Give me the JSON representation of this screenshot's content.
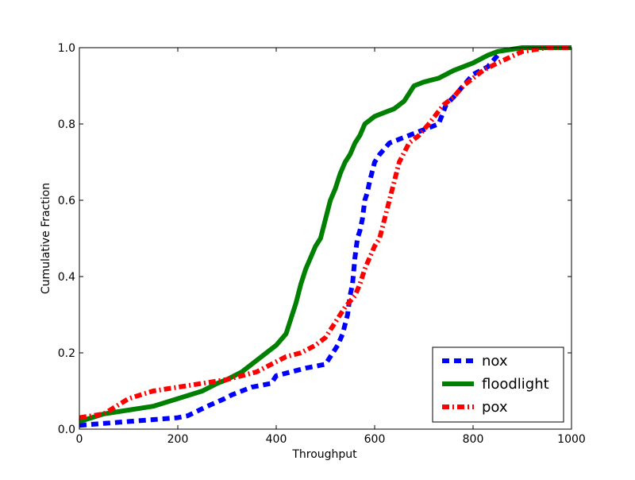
{
  "chart_data": {
    "type": "line",
    "title": "",
    "xlabel": "Throughput",
    "ylabel": "Cumulative Fraction",
    "xlim": [
      0,
      1000
    ],
    "ylim": [
      0,
      1.0
    ],
    "xticks": [
      0,
      200,
      400,
      600,
      800,
      1000
    ],
    "xtick_labels": [
      "0",
      "200",
      "400",
      "600",
      "800",
      "1000"
    ],
    "yticks": [
      0.0,
      0.2,
      0.4,
      0.6,
      0.8,
      1.0
    ],
    "ytick_labels": [
      "0.0",
      "0.2",
      "0.4",
      "0.6",
      "0.8",
      "1.0"
    ],
    "grid": false,
    "legend_position": "bottom-right",
    "series": [
      {
        "name": "nox",
        "color": "#0000ff",
        "style": "dashed",
        "x": [
          0,
          50,
          100,
          150,
          200,
          220,
          260,
          295,
          310,
          350,
          390,
          400,
          430,
          460,
          500,
          505,
          515,
          525,
          535,
          545,
          550,
          555,
          560,
          565,
          570,
          575,
          580,
          585,
          590,
          600,
          610,
          630,
          650,
          670,
          690,
          710,
          730,
          745,
          760,
          780,
          800,
          830,
          850
        ],
        "y": [
          0.01,
          0.015,
          0.02,
          0.025,
          0.03,
          0.035,
          0.06,
          0.08,
          0.09,
          0.11,
          0.12,
          0.14,
          0.15,
          0.16,
          0.17,
          0.18,
          0.2,
          0.22,
          0.25,
          0.3,
          0.35,
          0.38,
          0.45,
          0.5,
          0.52,
          0.55,
          0.6,
          0.62,
          0.65,
          0.7,
          0.72,
          0.75,
          0.76,
          0.77,
          0.78,
          0.79,
          0.8,
          0.85,
          0.87,
          0.9,
          0.93,
          0.95,
          0.98
        ]
      },
      {
        "name": "floodlight",
        "color": "#008000",
        "style": "solid",
        "x": [
          0,
          50,
          100,
          150,
          200,
          250,
          280,
          300,
          330,
          360,
          380,
          400,
          420,
          430,
          440,
          450,
          460,
          470,
          480,
          490,
          500,
          510,
          520,
          530,
          540,
          550,
          560,
          570,
          580,
          590,
          600,
          620,
          640,
          650,
          660,
          680,
          700,
          730,
          760,
          800,
          830,
          850,
          900,
          950,
          1000
        ],
        "y": [
          0.02,
          0.04,
          0.05,
          0.06,
          0.08,
          0.1,
          0.12,
          0.13,
          0.15,
          0.18,
          0.2,
          0.22,
          0.25,
          0.29,
          0.33,
          0.38,
          0.42,
          0.45,
          0.48,
          0.5,
          0.55,
          0.6,
          0.63,
          0.67,
          0.7,
          0.72,
          0.75,
          0.77,
          0.8,
          0.81,
          0.82,
          0.83,
          0.84,
          0.85,
          0.86,
          0.9,
          0.91,
          0.92,
          0.94,
          0.96,
          0.98,
          0.99,
          1.0,
          1.0,
          1.0
        ]
      },
      {
        "name": "pox",
        "color": "#ff0000",
        "style": "dashdot",
        "x": [
          0,
          50,
          100,
          150,
          200,
          250,
          300,
          330,
          360,
          390,
          420,
          450,
          480,
          500,
          520,
          540,
          560,
          570,
          580,
          590,
          600,
          610,
          620,
          630,
          640,
          650,
          670,
          690,
          710,
          740,
          760,
          780,
          800,
          820,
          850,
          900,
          950,
          1000
        ],
        "y": [
          0.03,
          0.04,
          0.08,
          0.1,
          0.11,
          0.12,
          0.13,
          0.14,
          0.15,
          0.17,
          0.19,
          0.2,
          0.22,
          0.24,
          0.28,
          0.32,
          0.35,
          0.38,
          0.42,
          0.45,
          0.48,
          0.5,
          0.55,
          0.6,
          0.65,
          0.7,
          0.75,
          0.77,
          0.8,
          0.85,
          0.87,
          0.9,
          0.92,
          0.94,
          0.96,
          0.99,
          1.0,
          1.0
        ]
      }
    ]
  }
}
